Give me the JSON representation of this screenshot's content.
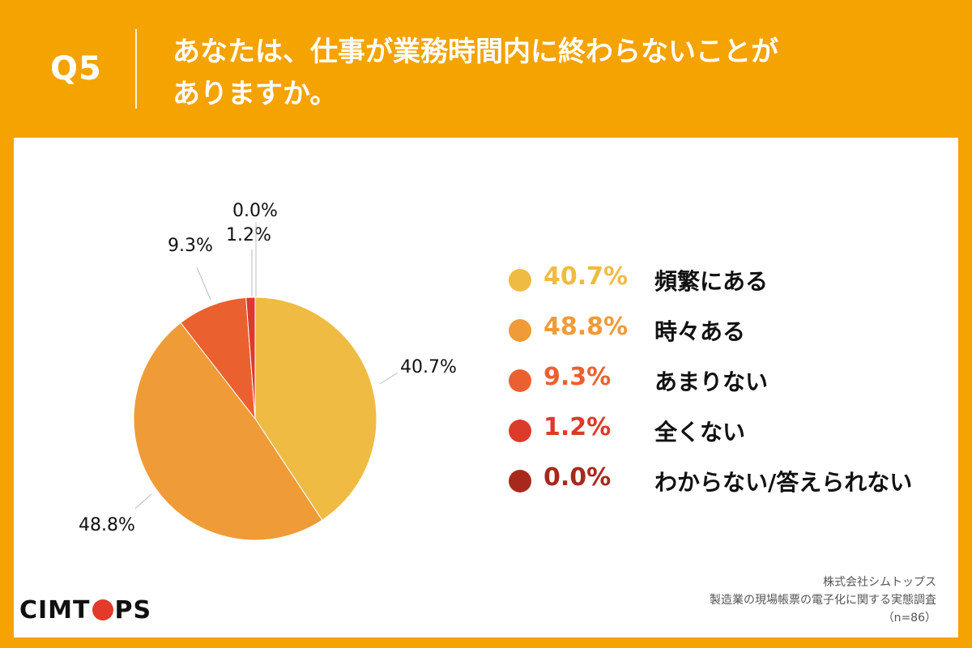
{
  "header": {
    "qnum": "Q5",
    "title_line1": "あなたは、仕事が業務時間内に終わらないことが",
    "title_line2": "ありますか。"
  },
  "chart_data": {
    "type": "pie",
    "labels": [
      "頻繁にある",
      "時々ある",
      "あまりない",
      "全くない",
      "わからない/答えられない"
    ],
    "values": [
      40.7,
      48.8,
      9.3,
      1.2,
      0.0
    ],
    "value_labels": [
      "40.7%",
      "48.8%",
      "9.3%",
      "1.2%",
      "0.0%"
    ],
    "colors": [
      "#F0BB43",
      "#EF9B38",
      "#EB602F",
      "#DC3A2A",
      "#A8291C"
    ],
    "legend_placement": "right"
  },
  "legend": {
    "items": [
      {
        "value": "40.7%",
        "label": "頻繁にある",
        "color": "#F0BB43"
      },
      {
        "value": "48.8%",
        "label": "時々ある",
        "color": "#EF9B38"
      },
      {
        "value": "9.3%",
        "label": "あまりない",
        "color": "#EB602F"
      },
      {
        "value": "1.2%",
        "label": "全くない",
        "color": "#DC3A2A"
      },
      {
        "value": "0.0%",
        "label": "わからない/答えられない",
        "color": "#A8291C"
      }
    ]
  },
  "footer": {
    "logo_left": "CIMT",
    "logo_right": "PS",
    "source_line1": "株式会社シムトップス",
    "source_line2": "製造業の現場帳票の電子化に関する実態調査",
    "source_line3": "（n=86）"
  }
}
